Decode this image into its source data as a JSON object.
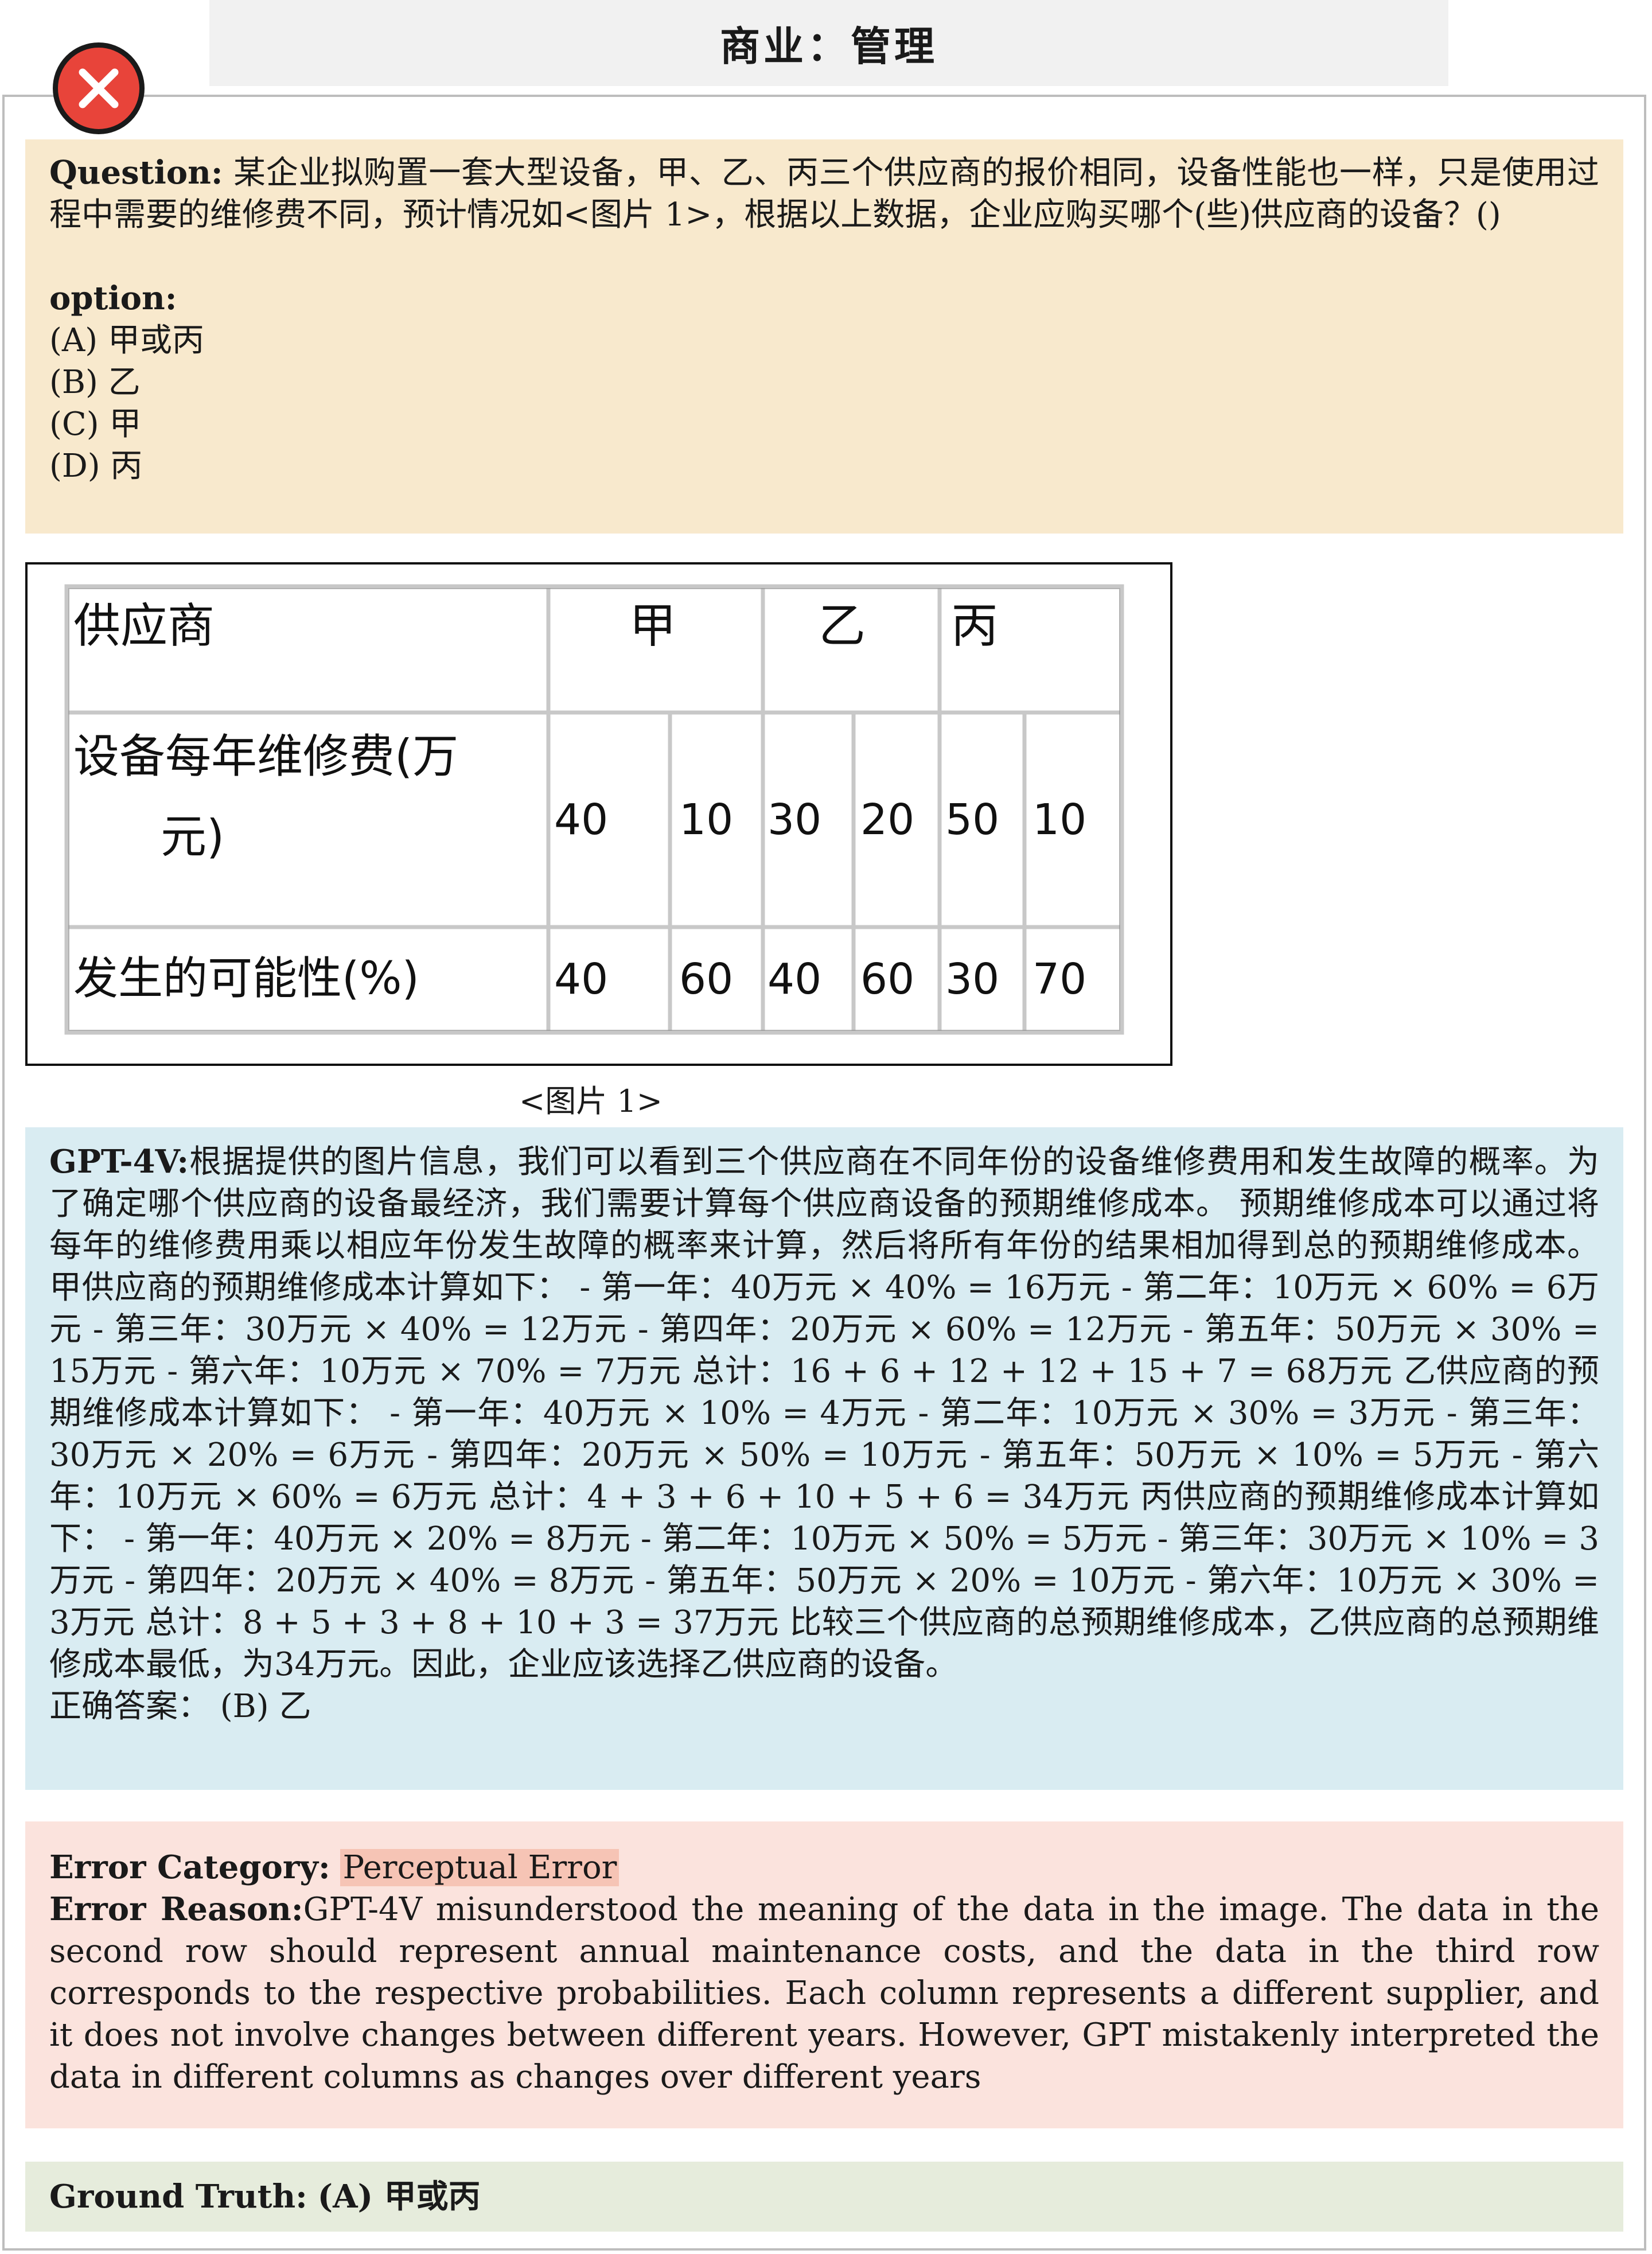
{
  "header": {
    "title": "商业：管理"
  },
  "question": {
    "label": "Question:",
    "text": " 某企业拟购置一套大型设备，甲、乙、丙三个供应商的报价相同，设备性能也一样，只是使用过程中需要的维修费不同，预计情况如<图片 1>，根据以上数据，企业应购买哪个(些)供应商的设备？()",
    "options_label": "option:",
    "options": [
      "(A) 甲或丙",
      "(B) 乙",
      "(C) 甲",
      "(D) 丙"
    ]
  },
  "figure": {
    "caption": "<图片 1>",
    "table": {
      "header_label": "供应商",
      "suppliers": [
        "甲",
        "乙",
        "丙"
      ],
      "cost_label_line1": "设备每年维修费(万",
      "cost_label_line2": "元)",
      "costs": [
        "40",
        "10",
        "30",
        "20",
        "50",
        "10"
      ],
      "prob_label": "发生的可能性(%)",
      "probs": [
        "40",
        "60",
        "40",
        "60",
        "30",
        "70"
      ]
    }
  },
  "gpt": {
    "label": "GPT-4V:",
    "text": "根据提供的图片信息，我们可以看到三个供应商在不同年份的设备维修费用和发生故障的概率。为了确定哪个供应商的设备最经济，我们需要计算每个供应商设备的预期维修成本。 预期维修成本可以通过将每年的维修费用乘以相应年份发生故障的概率来计算，然后将所有年份的结果相加得到总的预期维修成本。 甲供应商的预期维修成本计算如下： - 第一年：40万元 × 40% = 16万元 - 第二年：10万元 × 60% = 6万元 - 第三年：30万元 × 40% = 12万元 - 第四年：20万元 × 60% = 12万元 - 第五年：50万元 × 30% = 15万元 - 第六年：10万元 × 70% = 7万元 总计：16 + 6 + 12 + 12 + 15 + 7 = 68万元 乙供应商的预期维修成本计算如下： - 第一年：40万元 × 10% = 4万元 - 第二年：10万元 × 30% = 3万元 - 第三年：30万元 × 20% = 6万元 - 第四年：20万元 × 50% = 10万元 - 第五年：50万元 × 10% = 5万元 - 第六年：10万元 × 60% = 6万元 总计：4 + 3 + 6 + 10 + 5 + 6 = 34万元 丙供应商的预期维修成本计算如下： - 第一年：40万元 × 20% = 8万元 - 第二年：10万元 × 50% = 5万元 - 第三年：30万元 × 10% = 3万元 - 第四年：20万元 × 40% = 8万元 - 第五年：50万元 × 20% = 10万元 - 第六年：10万元 × 30% = 3万元 总计：8 + 5 + 3 + 8 + 10 + 3 = 37万元 比较三个供应商的总预期维修成本，乙供应商的总预期维修成本最低，为34万元。因此，企业应该选择乙供应商的设备。",
    "answer": "正确答案： (B) 乙"
  },
  "error": {
    "category_label": "Error Category:",
    "category": "Perceptual Error",
    "reason_label": "Error Reason:",
    "reason": "GPT-4V misunderstood the meaning of the data in the image. The data in the second row should represent annual maintenance costs, and the data in the third row corresponds to the respective probabilities. Each column represents a different supplier, and it does not involve changes between different years. However, GPT mistakenly interpreted the data in different columns as changes over different years"
  },
  "ground_truth": {
    "label": "Ground Truth:",
    "value": "(A) 甲或丙"
  },
  "colors": {
    "question_bg": "#f8e9cd",
    "gpt_bg": "#d9ecf2",
    "error_bg": "#fbe3dd",
    "highlight": "#f6c4b5",
    "ground_truth_bg": "#e6ecdc",
    "badge": "#e8443a"
  }
}
